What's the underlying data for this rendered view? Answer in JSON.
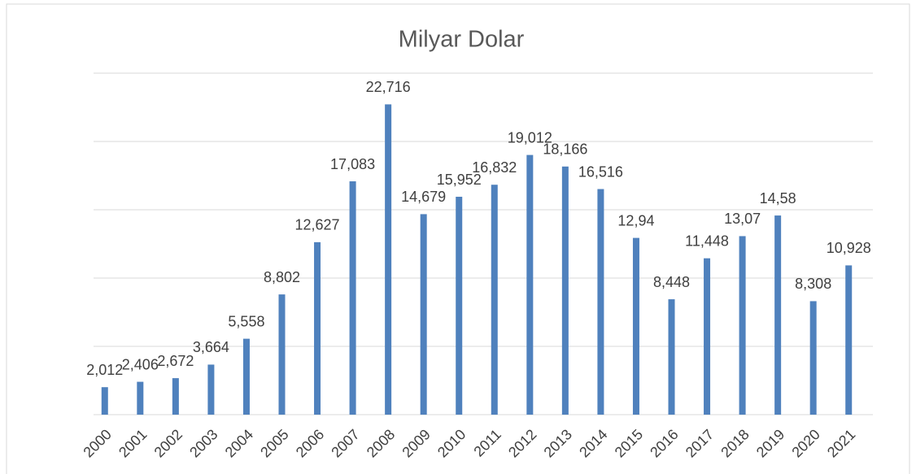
{
  "chart_data": {
    "type": "bar",
    "title": "Milyar Dolar",
    "categories": [
      "2000",
      "2001",
      "2002",
      "2003",
      "2004",
      "2005",
      "2006",
      "2007",
      "2008",
      "2009",
      "2010",
      "2011",
      "2012",
      "2013",
      "2014",
      "2015",
      "2016",
      "2017",
      "2018",
      "2019",
      "2020",
      "2021"
    ],
    "values": [
      2.012,
      2.406,
      2.672,
      3.664,
      5.558,
      8.802,
      12.627,
      17.083,
      22.716,
      14.679,
      15.952,
      16.832,
      19.012,
      18.166,
      16.516,
      12.94,
      8.448,
      11.448,
      13.07,
      14.58,
      8.308,
      10.928
    ],
    "value_labels": [
      "2,012",
      "2,406",
      "2,672",
      "3,664",
      "5,558",
      "8,802",
      "12,627",
      "17,083",
      "22,716",
      "14,679",
      "15,952",
      "16,832",
      "19,012",
      "18,166",
      "16,516",
      "12,94",
      "8,448",
      "11,448",
      "13,07",
      "14,58",
      "8,308",
      "10,928"
    ],
    "color": "#4f81bd",
    "ylim": [
      0,
      25
    ],
    "yticks": [
      0,
      5,
      10,
      15,
      20,
      25
    ],
    "grid": true
  }
}
